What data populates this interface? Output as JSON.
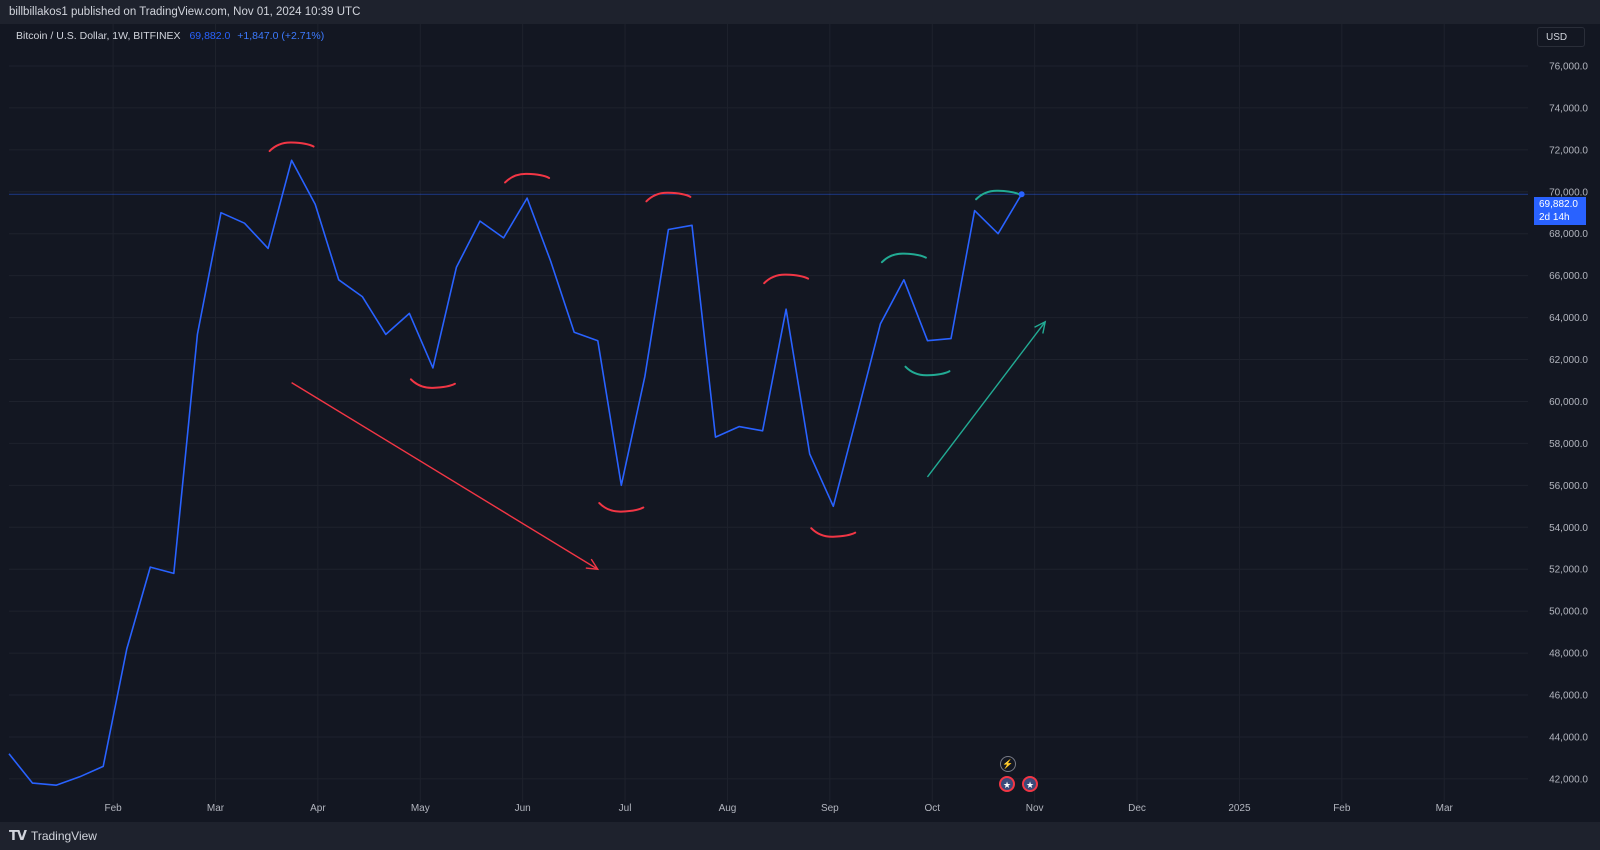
{
  "header": {
    "published_text": "billbillakos1 published on TradingView.com, Nov 01, 2024 10:39 UTC"
  },
  "legend": {
    "symbol": "Bitcoin / U.S. Dollar, 1W, BITFINEX",
    "price": "69,882.0",
    "change": "+1,847.0 (+2.71%)"
  },
  "currency": "USD",
  "price_tag": {
    "value": "69,882.0",
    "countdown": "2d 14h"
  },
  "footer": {
    "brand": "TradingView"
  },
  "colors": {
    "background": "#131722",
    "series": "#2962ff",
    "grid": "#1e222d",
    "red_drawing": "#f23645",
    "green_drawing": "#22ab94",
    "axis_text": "#b2b5be"
  },
  "icons": [
    "tradingview-logo-icon",
    "lightning-event-icon",
    "us-flag-event-icon"
  ],
  "chart_data": {
    "type": "line",
    "series": [
      {
        "name": "",
        "values": [
          43200,
          41800,
          41700,
          42100,
          42600,
          48200,
          52100,
          51800,
          63200,
          69000,
          68500,
          67300,
          71500,
          69400,
          65800,
          65000,
          63200,
          64200,
          61600,
          66400,
          68600,
          67800,
          69700,
          66700,
          63300,
          62900,
          56000,
          61200,
          68200,
          68400,
          58300,
          58800,
          58600,
          64400,
          57500,
          55000,
          59300,
          63700,
          65800,
          62900,
          63000,
          69100,
          68000,
          69882
        ]
      }
    ],
    "x_tick_labels": [
      "Feb",
      "Mar",
      "Apr",
      "May",
      "Jun",
      "Jul",
      "Aug",
      "Sep",
      "Oct",
      "Nov",
      "Dec",
      "2025",
      "Feb",
      "Mar"
    ],
    "y_tick_labels": [
      "42,000.0",
      "44,000.0",
      "46,000.0",
      "48,000.0",
      "50,000.0",
      "52,000.0",
      "54,000.0",
      "56,000.0",
      "58,000.0",
      "60,000.0",
      "62,000.0",
      "64,000.0",
      "66,000.0",
      "68,000.0",
      "70,000.0",
      "72,000.0",
      "74,000.0",
      "76,000.0"
    ],
    "ylim": [
      40900,
      78000
    ],
    "last_price": 69882,
    "grid": true,
    "annotations": {
      "red_arcs": [
        {
          "center_index": 12,
          "value": 72200,
          "kind": "top"
        },
        {
          "center_index": 22,
          "value": 70700,
          "kind": "top"
        },
        {
          "center_index": 28,
          "value": 69800,
          "kind": "top"
        },
        {
          "center_index": 33,
          "value": 65900,
          "kind": "top"
        },
        {
          "center_index": 18,
          "value": 60800,
          "kind": "bottom"
        },
        {
          "center_index": 26,
          "value": 54900,
          "kind": "bottom"
        },
        {
          "center_index": 35,
          "value": 53700,
          "kind": "bottom"
        }
      ],
      "green_arcs": [
        {
          "center_index": 38,
          "value": 66900,
          "kind": "top"
        },
        {
          "center_index": 42,
          "value": 69900,
          "kind": "top"
        },
        {
          "center_index": 39,
          "value": 61400,
          "kind": "bottom"
        }
      ],
      "red_arrow": {
        "from": [
          12,
          60900
        ],
        "to": [
          25,
          52000
        ]
      },
      "green_arrow": {
        "from": [
          39,
          56400
        ],
        "to": [
          44,
          63800
        ]
      }
    }
  }
}
